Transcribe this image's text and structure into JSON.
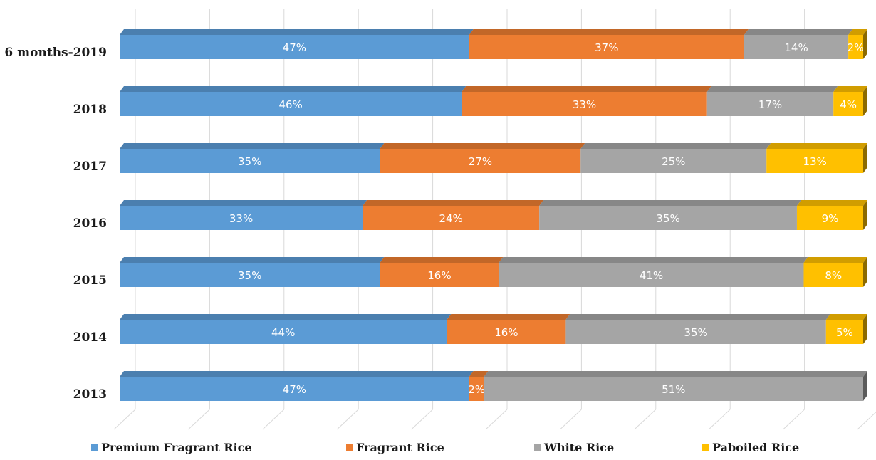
{
  "chart_data": {
    "type": "bar",
    "orientation": "horizontal",
    "stacked": true,
    "percent_stacked": true,
    "title": "",
    "xlabel": "",
    "ylabel": "",
    "xlim": [
      0,
      100
    ],
    "grid": true,
    "legend_position": "bottom",
    "categories": [
      "6 months-2019",
      "2018",
      "2017",
      "2016",
      "2015",
      "2014",
      "2013"
    ],
    "series": [
      {
        "name": "Premium Fragrant Rice",
        "color": "#5b9bd5",
        "values": [
          47,
          46,
          35,
          33,
          35,
          44,
          47
        ]
      },
      {
        "name": "Fragrant Rice",
        "color": "#ed7d31",
        "values": [
          37,
          33,
          27,
          24,
          16,
          16,
          2
        ]
      },
      {
        "name": "White Rice",
        "color": "#a5a5a5",
        "values": [
          14,
          17,
          25,
          35,
          41,
          35,
          51
        ]
      },
      {
        "name": "Paboiled Rice",
        "color": "#ffc000",
        "values": [
          2,
          4,
          13,
          9,
          8,
          5,
          0
        ]
      }
    ],
    "data_labels": [
      [
        "47%",
        "37%",
        "14%",
        "2%"
      ],
      [
        "46%",
        "33%",
        "17%",
        "4%"
      ],
      [
        "35%",
        "27%",
        "25%",
        "13%"
      ],
      [
        "33%",
        "24%",
        "35%",
        "9%"
      ],
      [
        "35%",
        "16%",
        "41%",
        "8%"
      ],
      [
        "44%",
        "16%",
        "35%",
        "5%"
      ],
      [
        "47%",
        "2%",
        "51%",
        ""
      ]
    ]
  }
}
